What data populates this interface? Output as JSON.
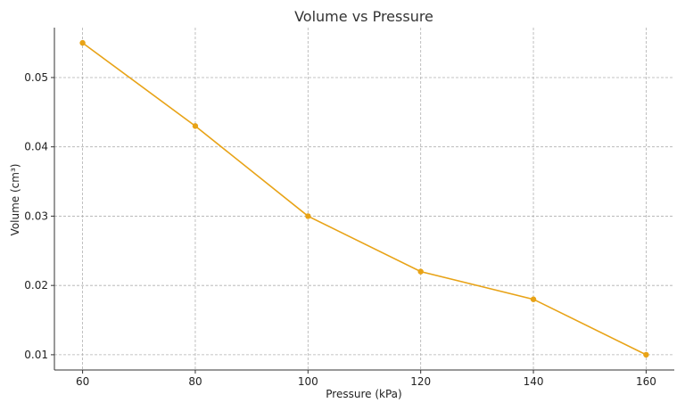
{
  "chart_data": {
    "type": "line",
    "title": "Volume vs Pressure",
    "xlabel": "Pressure (kPa)",
    "ylabel": "Volume (cm³)",
    "x": [
      60,
      80,
      100,
      120,
      140,
      160
    ],
    "series": [
      {
        "values": [
          0.055,
          0.043,
          0.03,
          0.022,
          0.018,
          0.01
        ],
        "color": "#e8a317"
      }
    ],
    "xlim": [
      55,
      165
    ],
    "ylim": [
      0.0078,
      0.0572
    ],
    "xticks": [
      60,
      80,
      100,
      120,
      140,
      160
    ],
    "yticks": [
      0.01,
      0.02,
      0.03,
      0.04,
      0.05
    ],
    "xtick_labels": [
      "60",
      "80",
      "100",
      "120",
      "140",
      "160"
    ],
    "ytick_labels": [
      "0.01",
      "0.02",
      "0.03",
      "0.04",
      "0.05"
    ],
    "grid": true,
    "marker": "circle"
  }
}
